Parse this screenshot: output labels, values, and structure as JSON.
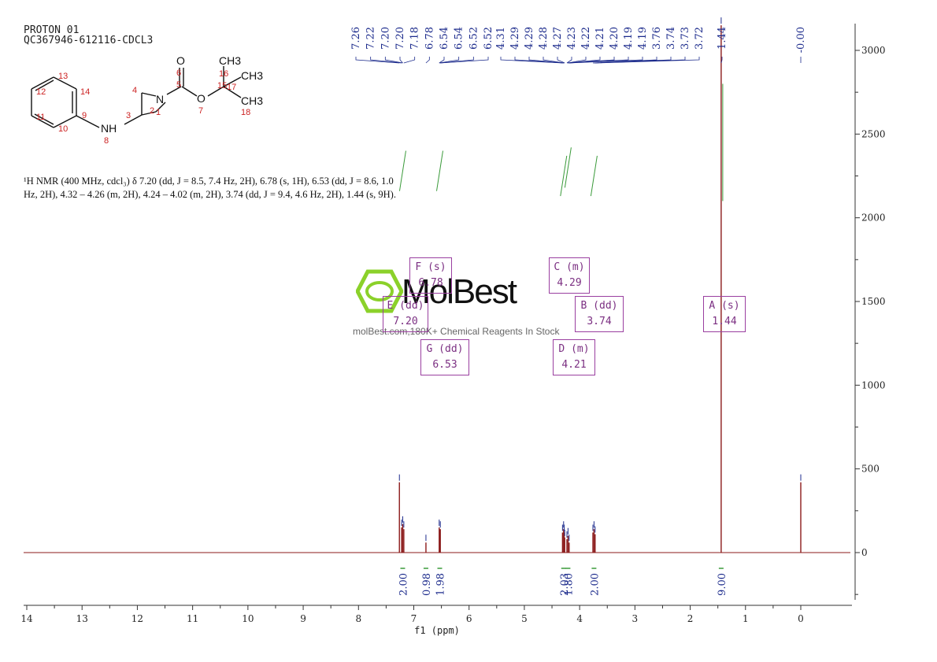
{
  "header": {
    "line1": "PROTON 01",
    "line2": "QC367946-612116-CDCL3"
  },
  "description": {
    "line1": "¹H NMR (400 MHz, cdcl₃) δ 7.20 (dd, J = 8.5, 7.4 Hz, 2H), 6.78 (s, 1H), 6.53 (dd, J = 8.6, 1.0",
    "line2": "Hz, 2H), 4.32 – 4.26 (m, 2H), 4.24 – 4.02 (m, 2H), 3.74 (dd, J = 9.4, 4.6 Hz, 2H), 1.44 (s, 9H)."
  },
  "structure": {
    "atoms": {
      "o_top": "O",
      "o_ester": "O",
      "n_ring": "N",
      "nh": "NH",
      "ch3_top": "CH3",
      "ch3_mid": "CH3",
      "ch3_bot": "CH3"
    },
    "numbers": {
      "n1": "1",
      "n2": "2",
      "n3": "3",
      "n4": "4",
      "n5": "5",
      "n6": "6",
      "n7": "7",
      "n8": "8",
      "n9": "9",
      "n10": "10",
      "n11": "11",
      "n12": "12",
      "n13": "13",
      "n14": "14",
      "n15": "15",
      "n16": "16",
      "n17": "17",
      "n18": "18"
    }
  },
  "watermark": {
    "name": "MolBest",
    "tagline": "molBest.com,180K+ Chemical Reagents In Stock"
  },
  "multiplets": [
    {
      "id": "F",
      "type": "s",
      "shift": "6.78"
    },
    {
      "id": "E",
      "type": "dd",
      "shift": "7.20"
    },
    {
      "id": "G",
      "type": "dd",
      "shift": "6.53"
    },
    {
      "id": "C",
      "type": "m",
      "shift": "4.29"
    },
    {
      "id": "B",
      "type": "dd",
      "shift": "3.74"
    },
    {
      "id": "D",
      "type": "m",
      "shift": "4.21"
    },
    {
      "id": "A",
      "type": "s",
      "shift": "1.44"
    }
  ],
  "chart_data": {
    "type": "line",
    "xlabel": "f1 (ppm)",
    "xlim": [
      14,
      -0.9
    ],
    "ylim": [
      -300,
      3150
    ],
    "x_ticks": [
      14,
      13,
      12,
      11,
      10,
      9,
      8,
      7,
      6,
      5,
      4,
      3,
      2,
      1,
      0
    ],
    "y_ticks": [
      0,
      500,
      1000,
      1500,
      2000,
      2500,
      3000
    ],
    "peak_labels": [
      "7.26",
      "7.22",
      "7.20",
      "7.20",
      "7.18",
      "6.78",
      "6.54",
      "6.54",
      "6.52",
      "6.52",
      "4.31",
      "4.29",
      "4.29",
      "4.28",
      "4.27",
      "4.23",
      "4.22",
      "4.21",
      "4.20",
      "4.19",
      "4.19",
      "3.76",
      "3.74",
      "3.73",
      "3.72",
      "1.44",
      "-0.00"
    ],
    "peaks": [
      {
        "x": 7.26,
        "y": 420
      },
      {
        "x": 7.22,
        "y": 150
      },
      {
        "x": 7.2,
        "y": 170
      },
      {
        "x": 7.18,
        "y": 140
      },
      {
        "x": 6.78,
        "y": 60
      },
      {
        "x": 6.54,
        "y": 150
      },
      {
        "x": 6.52,
        "y": 140
      },
      {
        "x": 4.31,
        "y": 120
      },
      {
        "x": 4.29,
        "y": 140
      },
      {
        "x": 4.28,
        "y": 120
      },
      {
        "x": 4.27,
        "y": 90
      },
      {
        "x": 4.23,
        "y": 80
      },
      {
        "x": 4.21,
        "y": 100
      },
      {
        "x": 4.19,
        "y": 60
      },
      {
        "x": 3.76,
        "y": 120
      },
      {
        "x": 3.74,
        "y": 140
      },
      {
        "x": 3.72,
        "y": 110
      },
      {
        "x": 1.44,
        "y": 3150
      },
      {
        "x": 0.0,
        "y": 420
      }
    ],
    "integrals": [
      {
        "label": "2.00",
        "x": 7.2
      },
      {
        "label": "0.98",
        "x": 6.78
      },
      {
        "label": "1.98",
        "x": 6.53
      },
      {
        "label": "2.03",
        "x": 4.29
      },
      {
        "label": "1.80",
        "x": 4.21
      },
      {
        "label": "2.00",
        "x": 3.74
      },
      {
        "label": "9.00",
        "x": 1.44
      }
    ]
  },
  "colors": {
    "spectrum": "#8b1a1a",
    "peak_label": "#1c2b8c",
    "integral": "#3a9a3a",
    "box": "#9a3fa0",
    "atom_num": "#cc2222",
    "watermark_green": "#8bd12a"
  }
}
